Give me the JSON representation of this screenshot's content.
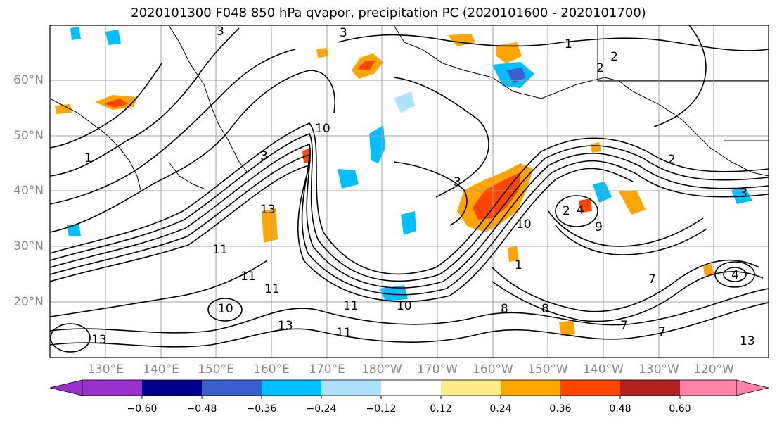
{
  "title": "2020101300 F048 850 hPa qvapor, precipitation PC (2020101600 - 2020101700)",
  "map": {
    "lat_labels": [
      "60°N",
      "50°N",
      "40°N",
      "30°N",
      "20°N"
    ],
    "lon_labels": [
      "130°E",
      "140°E",
      "150°E",
      "160°E",
      "170°E",
      "180°W",
      "170°W",
      "160°W",
      "150°W",
      "140°W",
      "130°W",
      "120°W"
    ],
    "contour_labels": [
      "3",
      "3",
      "1",
      "2",
      "2",
      "1",
      "10",
      "3",
      "3",
      "2",
      "2",
      "4",
      "13",
      "11",
      "11",
      "11",
      "11",
      "13",
      "10",
      "10",
      "11",
      "13",
      "7",
      "7",
      "8",
      "8",
      "9",
      "7",
      "4",
      "10",
      "1",
      "13",
      "3"
    ]
  },
  "colorbar": {
    "ticks": [
      "−0.60",
      "−0.48",
      "−0.36",
      "−0.24",
      "−0.12",
      "0.12",
      "0.24",
      "0.36",
      "0.48",
      "0.60"
    ],
    "colors": [
      "#9932cc",
      "#00008b",
      "#3a5fcd",
      "#00bfff",
      "#b0e2ff",
      "#ffffff",
      "#ffec8b",
      "#ffa500",
      "#ff4500",
      "#b22222",
      "#ff82ab"
    ]
  }
}
